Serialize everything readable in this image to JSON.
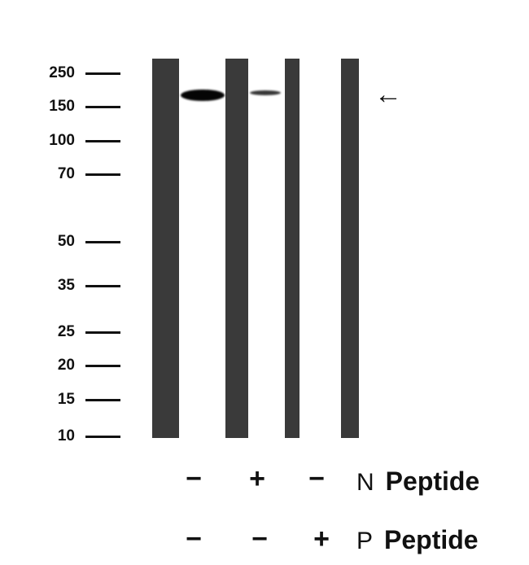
{
  "markers": [
    "250",
    "150",
    "100",
    "70",
    "50",
    "35",
    "25",
    "20",
    "15",
    "10"
  ],
  "arrow_icon": "left-arrow-icon",
  "lanes": [
    {
      "n_peptide": "−",
      "p_peptide": "−",
      "band_intensity": "strong"
    },
    {
      "n_peptide": "+",
      "p_peptide": "−",
      "band_intensity": "weak"
    },
    {
      "n_peptide": "−",
      "p_peptide": "+",
      "band_intensity": "none"
    }
  ],
  "rows": [
    {
      "prefix": "N",
      "label": "Peptide"
    },
    {
      "prefix": "P",
      "label": "Peptide"
    }
  ]
}
